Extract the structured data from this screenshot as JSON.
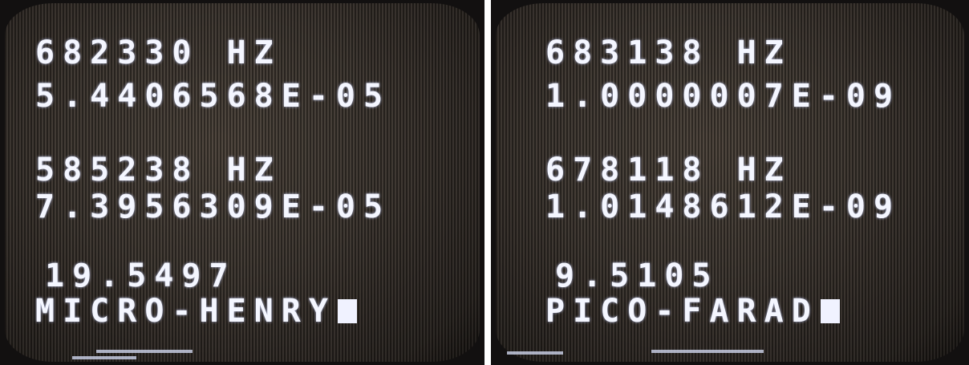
{
  "panels": [
    {
      "lines": [
        "682330 HZ",
        "5.4406568E-05",
        "585238 HZ",
        "7.3956309E-05",
        "19.5497",
        "MICRO-HENRY"
      ]
    },
    {
      "lines": [
        "683138 HZ",
        "1.0000007E-09",
        "678118 HZ",
        "1.0148612E-09",
        "9.5105",
        "PICO-FARAD"
      ]
    }
  ]
}
